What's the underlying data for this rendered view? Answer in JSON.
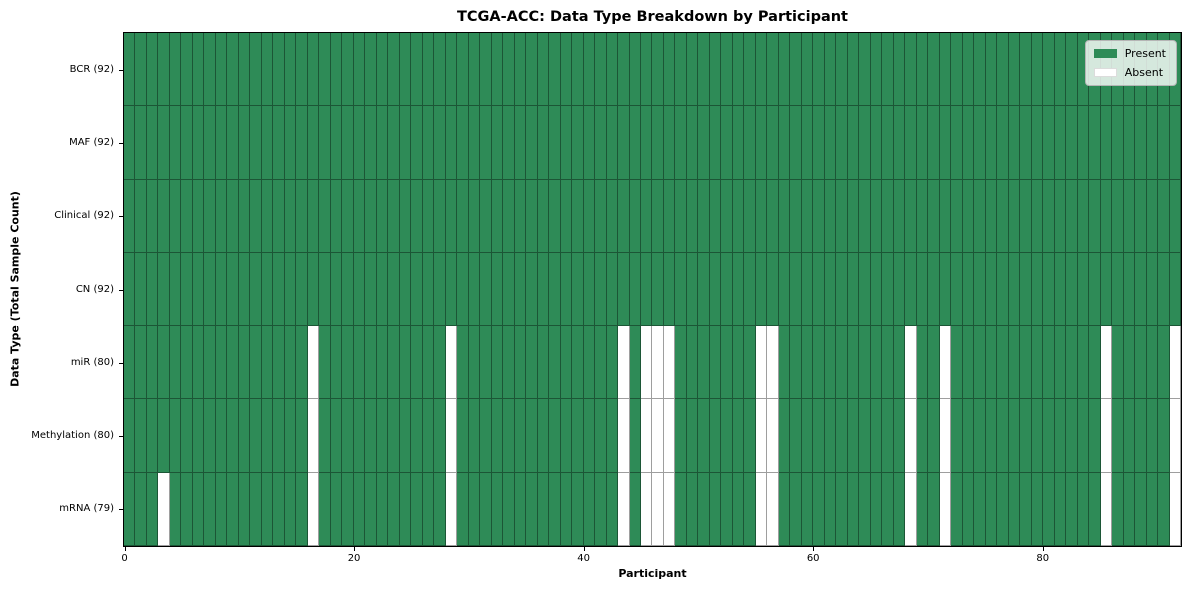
{
  "chart_data": {
    "type": "heatmap",
    "title": "TCGA-ACC: Data Type Breakdown by Participant",
    "xlabel": "Participant",
    "ylabel": "Data Type (Total Sample Count)",
    "n_participants": 92,
    "x_ticks": [
      0,
      20,
      40,
      60,
      80
    ],
    "legend": [
      {
        "label": "Present",
        "color": "#2e8b57"
      },
      {
        "label": "Absent",
        "color": "#ffffff"
      }
    ],
    "colors": {
      "present": "#2e8b57",
      "absent": "#ffffff",
      "grid_line": "rgba(0,0,0,0.38)"
    },
    "rows": [
      {
        "label": "BCR (92)",
        "present_count": 92,
        "absent_participants": []
      },
      {
        "label": "MAF (92)",
        "present_count": 92,
        "absent_participants": []
      },
      {
        "label": "Clinical (92)",
        "present_count": 92,
        "absent_participants": []
      },
      {
        "label": "CN (92)",
        "present_count": 92,
        "absent_participants": []
      },
      {
        "label": "miR (80)",
        "present_count": 80,
        "absent_participants": [
          16,
          28,
          43,
          45,
          46,
          47,
          55,
          56,
          68,
          71,
          85,
          91
        ]
      },
      {
        "label": "Methylation (80)",
        "present_count": 80,
        "absent_participants": [
          16,
          28,
          43,
          45,
          46,
          47,
          55,
          56,
          68,
          71,
          85,
          91
        ]
      },
      {
        "label": "mRNA (79)",
        "present_count": 79,
        "absent_participants": [
          3,
          16,
          28,
          43,
          45,
          46,
          47,
          55,
          56,
          68,
          71,
          85,
          91
        ]
      }
    ]
  }
}
